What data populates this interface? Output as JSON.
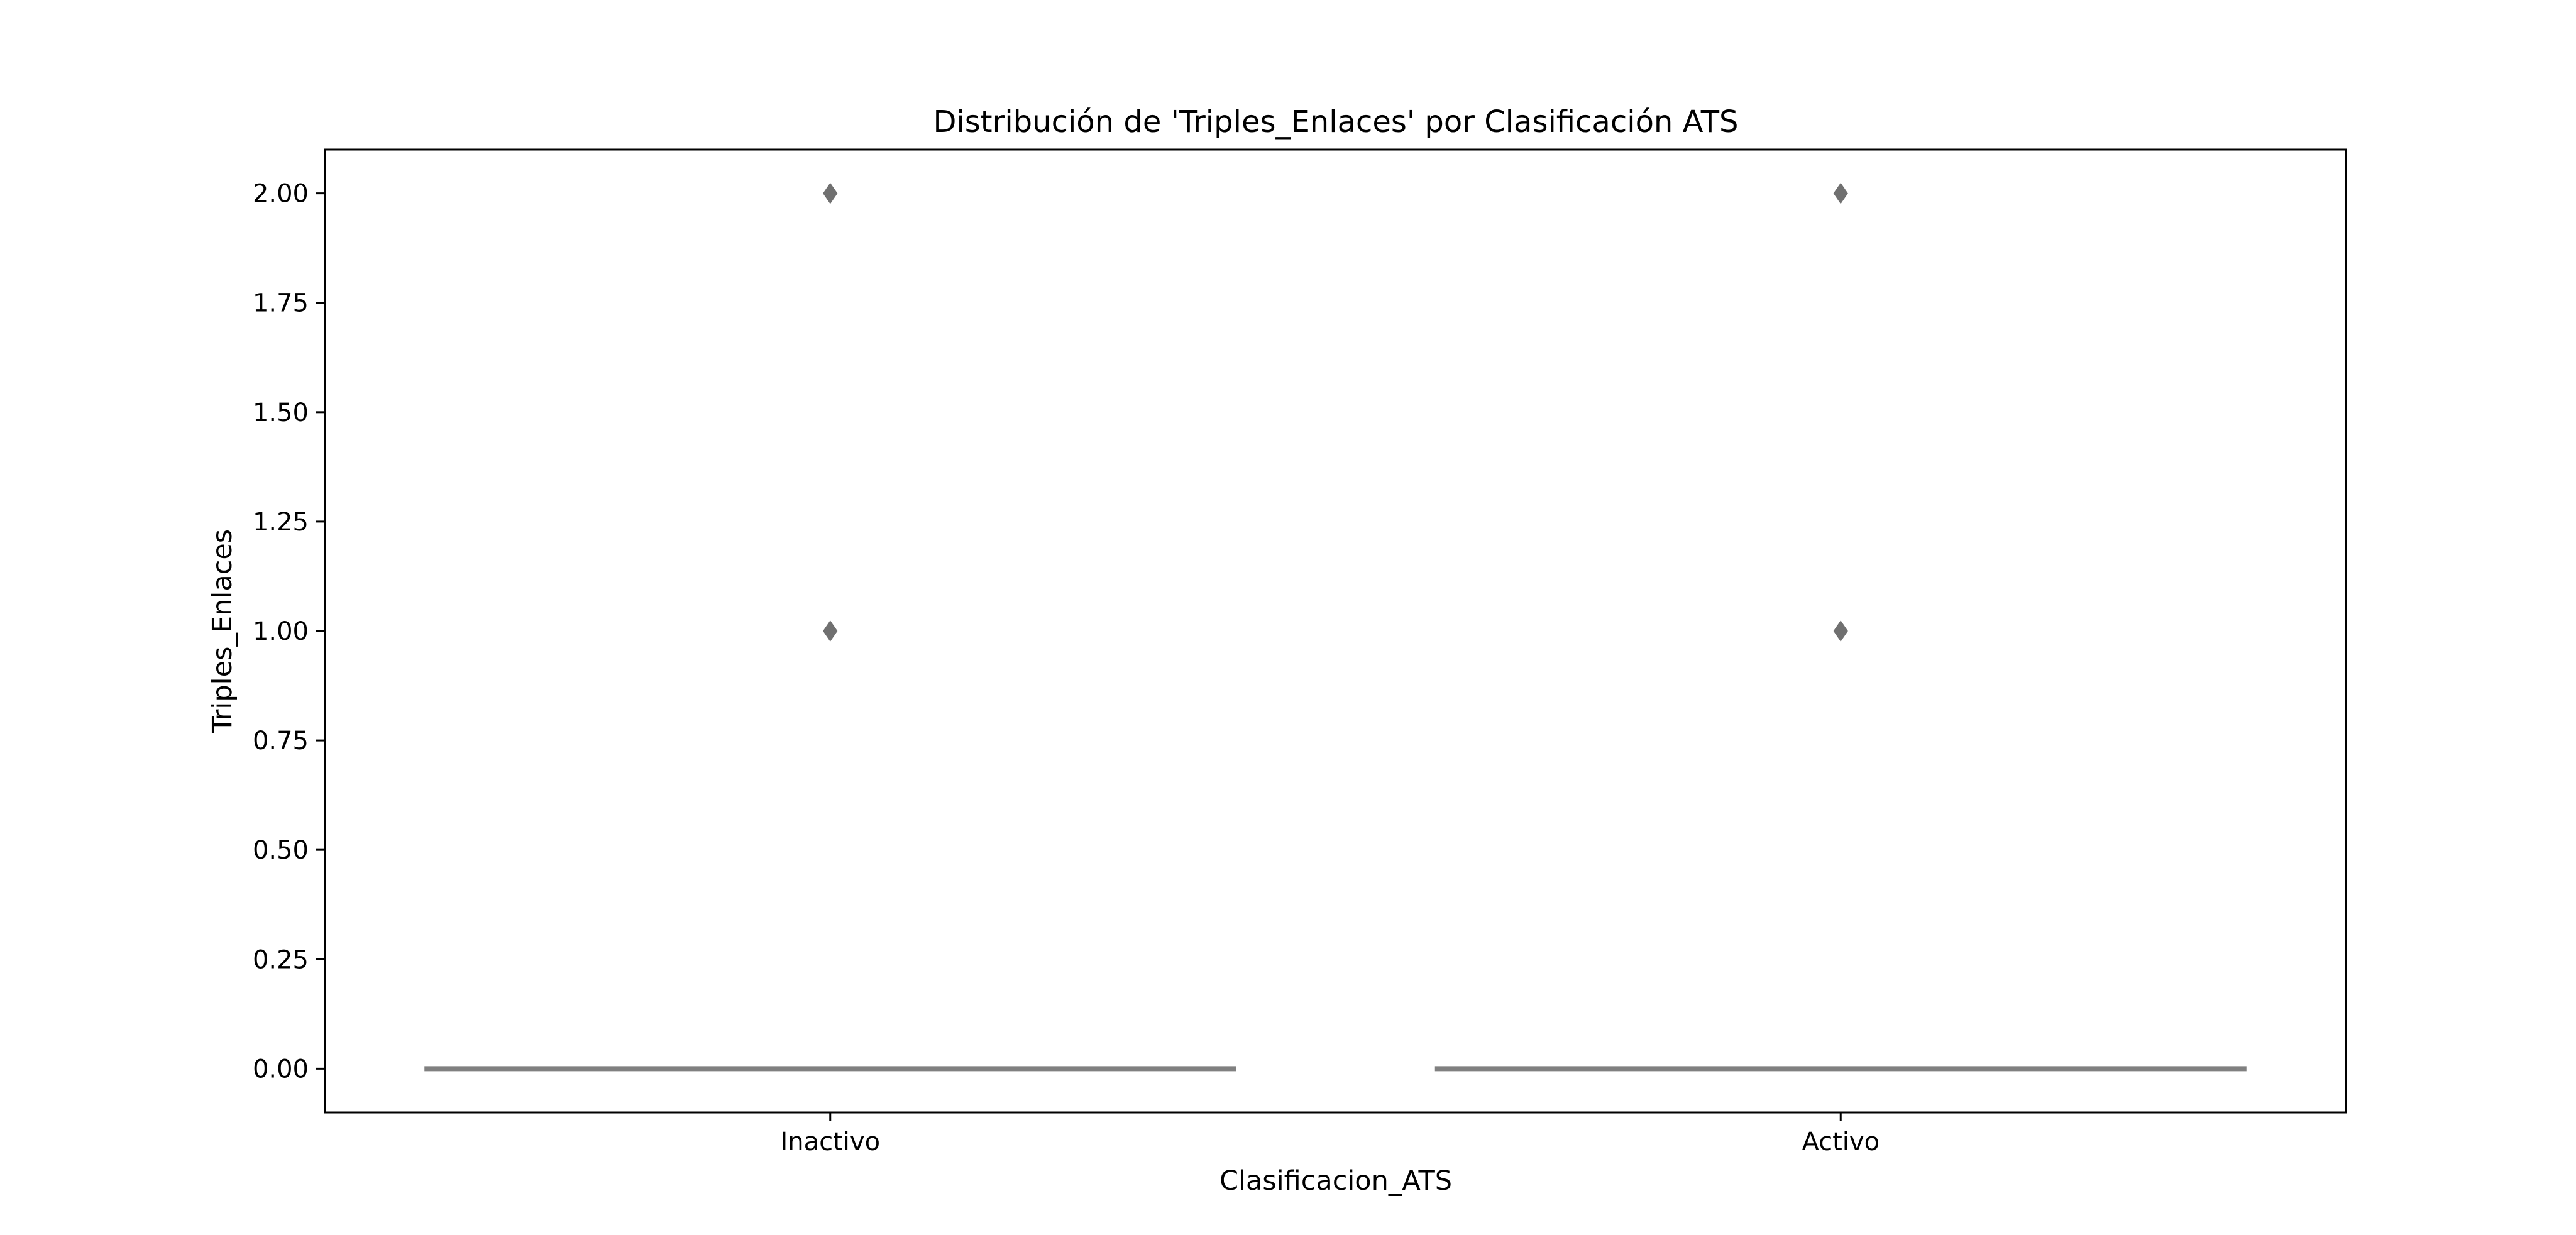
{
  "chart_data": {
    "type": "box",
    "title": "Distribución de 'Triples_Enlaces' por Clasificación ATS",
    "xlabel": "Clasificacion_ATS",
    "ylabel": "Triples_Enlaces",
    "categories": [
      "Inactivo",
      "Activo"
    ],
    "ylim": [
      -0.1,
      2.1
    ],
    "yticks": [
      0.0,
      0.25,
      0.5,
      0.75,
      1.0,
      1.25,
      1.5,
      1.75,
      2.0
    ],
    "ytick_labels": [
      "0.00",
      "0.25",
      "0.50",
      "0.75",
      "1.00",
      "1.25",
      "1.50",
      "1.75",
      "2.00"
    ],
    "boxes": [
      {
        "category": "Inactivo",
        "q1": 0,
        "median": 0,
        "q3": 0,
        "whisker_low": 0,
        "whisker_high": 0,
        "outliers": [
          1,
          2
        ]
      },
      {
        "category": "Activo",
        "q1": 0,
        "median": 0,
        "q3": 0,
        "whisker_low": 0,
        "whisker_high": 0,
        "outliers": [
          1,
          2
        ]
      }
    ],
    "grid": false,
    "colors": {
      "box": "#808080",
      "outlier": "#707070",
      "frame": "#000000"
    }
  }
}
